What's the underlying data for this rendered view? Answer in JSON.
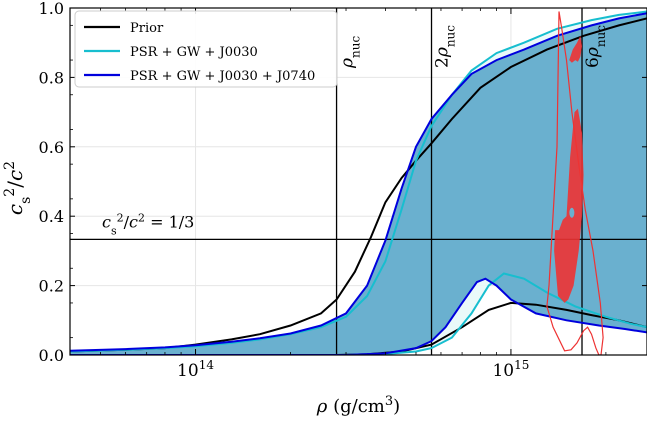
{
  "chart_data": {
    "type": "area",
    "xscale": "log",
    "xlim": [
      40000000000000.0,
      2700000000000000.0
    ],
    "ylim": [
      0.0,
      1.0
    ],
    "grid": true,
    "legend_placement": "top-left",
    "xlabel": "ρ (g/cm³)",
    "ylabel": "c_s²/c²",
    "xticks": [
      {
        "value": 100000000000000.0,
        "base": "10",
        "exp": "14"
      },
      {
        "value": 1000000000000000.0,
        "base": "10",
        "exp": "15"
      }
    ],
    "yticks": [
      {
        "value": 0.0,
        "label": "0.0"
      },
      {
        "value": 0.2,
        "label": "0.2"
      },
      {
        "value": 0.4,
        "label": "0.4"
      },
      {
        "value": 0.6,
        "label": "0.6"
      },
      {
        "value": 0.8,
        "label": "0.8"
      },
      {
        "value": 1.0,
        "label": "1.0"
      }
    ],
    "colors": {
      "prior": "#000000",
      "j0030": "#17becf",
      "j0740": "#0000dd",
      "j0740_fill": "#6ab0cf",
      "j0030_fill": "#e8f8f8",
      "red": "#ee3333"
    },
    "legend": [
      {
        "key": "prior",
        "label": "Prior"
      },
      {
        "key": "j0030",
        "label": "PSR + GW + J0030"
      },
      {
        "key": "j0740",
        "label": "PSR + GW + J0030 + J0740"
      }
    ],
    "reference_lines": [
      {
        "axis": "x",
        "value": 280000000000000.0,
        "label": "ρ",
        "sub": "nuc",
        "coef": ""
      },
      {
        "axis": "x",
        "value": 560000000000000.0,
        "label": "ρ",
        "sub": "nuc",
        "coef": "2"
      },
      {
        "axis": "x",
        "value": 1680000000000000.0,
        "label": "ρ",
        "sub": "nuc",
        "coef": "6"
      },
      {
        "axis": "y",
        "value": 0.3333,
        "label": "c_s²/c² = 1/3"
      }
    ],
    "series": [
      {
        "name": "Prior",
        "upper": {
          "x": [
            40000000000000.0,
            60000000000000.0,
            80000000000000.0,
            100000000000000.0,
            130000000000000.0,
            160000000000000.0,
            200000000000000.0,
            250000000000000.0,
            280000000000000.0,
            320000000000000.0,
            360000000000000.0,
            400000000000000.0,
            450000000000000.0,
            500000000000000.0,
            560000000000000.0,
            650000000000000.0,
            800000000000000.0,
            1000000000000000.0,
            1300000000000000.0,
            1700000000000000.0,
            2200000000000000.0,
            2700000000000000.0
          ],
          "y": [
            0.01,
            0.015,
            0.02,
            0.03,
            0.045,
            0.06,
            0.085,
            0.12,
            0.16,
            0.24,
            0.34,
            0.44,
            0.51,
            0.56,
            0.61,
            0.68,
            0.77,
            0.83,
            0.88,
            0.92,
            0.95,
            0.97
          ]
        },
        "lower": {
          "x": [
            40000000000000.0,
            200000000000000.0,
            280000000000000.0,
            350000000000000.0,
            450000000000000.0,
            560000000000000.0,
            700000000000000.0,
            850000000000000.0,
            1000000000000000.0,
            1200000000000000.0,
            1500000000000000.0,
            1800000000000000.0,
            2200000000000000.0,
            2700000000000000.0
          ],
          "y": [
            0.0,
            0.0,
            0.0,
            0.002,
            0.01,
            0.03,
            0.08,
            0.13,
            0.15,
            0.145,
            0.13,
            0.115,
            0.1,
            0.08
          ]
        }
      },
      {
        "name": "PSR + GW + J0030",
        "upper": {
          "x": [
            40000000000000.0,
            60000000000000.0,
            80000000000000.0,
            100000000000000.0,
            130000000000000.0,
            160000000000000.0,
            200000000000000.0,
            250000000000000.0,
            300000000000000.0,
            350000000000000.0,
            400000000000000.0,
            450000000000000.0,
            500000000000000.0,
            560000000000000.0,
            650000000000000.0,
            750000000000000.0,
            900000000000000.0,
            1100000000000000.0,
            1400000000000000.0,
            1800000000000000.0,
            2200000000000000.0,
            2700000000000000.0
          ],
          "y": [
            0.01,
            0.015,
            0.02,
            0.025,
            0.035,
            0.045,
            0.06,
            0.08,
            0.11,
            0.17,
            0.27,
            0.42,
            0.56,
            0.66,
            0.75,
            0.82,
            0.87,
            0.9,
            0.94,
            0.965,
            0.98,
            0.99
          ]
        },
        "lower": {
          "x": [
            40000000000000.0,
            300000000000000.0,
            400000000000000.0,
            500000000000000.0,
            560000000000000.0,
            650000000000000.0,
            750000000000000.0,
            850000000000000.0,
            950000000000000.0,
            1100000000000000.0,
            1300000000000000.0,
            1600000000000000.0,
            2000000000000000.0,
            2400000000000000.0,
            2700000000000000.0
          ],
          "y": [
            0.0,
            0.0,
            0.003,
            0.01,
            0.02,
            0.05,
            0.12,
            0.2,
            0.235,
            0.22,
            0.18,
            0.14,
            0.11,
            0.09,
            0.08
          ]
        }
      },
      {
        "name": "PSR + GW + J0030 + J0740",
        "upper": {
          "x": [
            40000000000000.0,
            60000000000000.0,
            80000000000000.0,
            100000000000000.0,
            130000000000000.0,
            160000000000000.0,
            200000000000000.0,
            250000000000000.0,
            300000000000000.0,
            350000000000000.0,
            400000000000000.0,
            450000000000000.0,
            500000000000000.0,
            560000000000000.0,
            650000000000000.0,
            750000000000000.0,
            900000000000000.0,
            1100000000000000.0,
            1400000000000000.0,
            1800000000000000.0,
            2200000000000000.0,
            2700000000000000.0
          ],
          "y": [
            0.012,
            0.017,
            0.022,
            0.028,
            0.038,
            0.048,
            0.062,
            0.085,
            0.12,
            0.2,
            0.33,
            0.48,
            0.6,
            0.68,
            0.75,
            0.81,
            0.85,
            0.88,
            0.92,
            0.95,
            0.97,
            0.985
          ]
        },
        "lower": {
          "x": [
            40000000000000.0,
            300000000000000.0,
            400000000000000.0,
            500000000000000.0,
            560000000000000.0,
            620000000000000.0,
            700000000000000.0,
            780000000000000.0,
            830000000000000.0,
            900000000000000.0,
            1000000000000000.0,
            1200000000000000.0,
            1500000000000000.0,
            1900000000000000.0,
            2300000000000000.0,
            2700000000000000.0
          ],
          "y": [
            0.0,
            0.0,
            0.005,
            0.02,
            0.04,
            0.08,
            0.15,
            0.21,
            0.22,
            0.2,
            0.16,
            0.12,
            0.1,
            0.085,
            0.075,
            0.065
          ]
        }
      }
    ],
    "overlays": [
      {
        "name": "red-outer-contour",
        "kind": "outline",
        "x": [
          1420000000000000.0,
          1450000000000000.0,
          1500000000000000.0,
          1560000000000000.0,
          1640000000000000.0,
          1720000000000000.0,
          1820000000000000.0,
          1920000000000000.0,
          1960000000000000.0,
          1930000000000000.0,
          1900000000000000.0,
          1860000000000000.0,
          1800000000000000.0,
          1750000000000000.0,
          1700000000000000.0,
          1620000000000000.0,
          1550000000000000.0,
          1480000000000000.0,
          1360000000000000.0,
          1300000000000000.0,
          1320000000000000.0,
          1400000000000000.0
        ],
        "y": [
          0.99,
          0.94,
          0.85,
          0.7,
          0.55,
          0.42,
          0.3,
          0.15,
          0.05,
          0.0,
          0.0,
          0.02,
          0.06,
          0.08,
          0.07,
          0.035,
          0.015,
          0.012,
          0.08,
          0.14,
          0.2,
          0.6
        ]
      },
      {
        "name": "red-blob-upper",
        "kind": "filled",
        "x": [
          1530000000000000.0,
          1570000000000000.0,
          1620000000000000.0,
          1660000000000000.0,
          1680000000000000.0,
          1660000000000000.0,
          1630000000000000.0,
          1600000000000000.0,
          1560000000000000.0,
          1530000000000000.0
        ],
        "y": [
          0.85,
          0.88,
          0.9,
          0.92,
          0.89,
          0.86,
          0.845,
          0.85,
          0.842,
          0.85
        ]
      },
      {
        "name": "red-blob-main",
        "kind": "filled",
        "x": [
          1500000000000000.0,
          1540000000000000.0,
          1590000000000000.0,
          1630000000000000.0,
          1680000000000000.0,
          1700000000000000.0,
          1680000000000000.0,
          1640000000000000.0,
          1580000000000000.0,
          1520000000000000.0,
          1480000000000000.0,
          1410000000000000.0,
          1370000000000000.0,
          1380000000000000.0,
          1420000000000000.0,
          1460000000000000.0
        ],
        "y": [
          0.4,
          0.57,
          0.7,
          0.71,
          0.64,
          0.52,
          0.4,
          0.3,
          0.2,
          0.16,
          0.15,
          0.17,
          0.3,
          0.36,
          0.36,
          0.39
        ]
      }
    ]
  }
}
